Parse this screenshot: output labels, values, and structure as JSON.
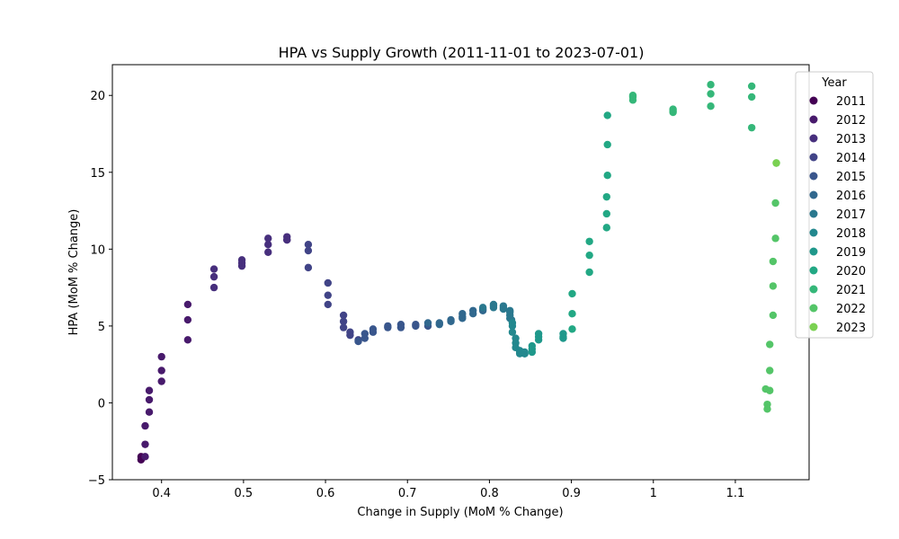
{
  "chart_data": {
    "type": "scatter",
    "title": "HPA vs Supply Growth (2011-11-01 to 2023-07-01)",
    "xlabel": "Change in Supply (MoM % Change)",
    "ylabel": "HPA (MoM % Change)",
    "xlim": [
      0.34,
      1.19
    ],
    "ylim": [
      -5,
      22
    ],
    "xticks": [
      0.4,
      0.5,
      0.6,
      0.7,
      0.8,
      0.9,
      1.0,
      1.1
    ],
    "yticks": [
      -5,
      0,
      5,
      10,
      15,
      20
    ],
    "grid": false,
    "legend": {
      "title": "Year",
      "placement": "right",
      "entries": [
        {
          "label": "2011",
          "color": "#440154"
        },
        {
          "label": "2012",
          "color": "#481a6c"
        },
        {
          "label": "2013",
          "color": "#472f7d"
        },
        {
          "label": "2014",
          "color": "#414487"
        },
        {
          "label": "2015",
          "color": "#39568c"
        },
        {
          "label": "2016",
          "color": "#31688e"
        },
        {
          "label": "2017",
          "color": "#2a788e"
        },
        {
          "label": "2018",
          "color": "#23888e"
        },
        {
          "label": "2019",
          "color": "#1f988b"
        },
        {
          "label": "2020",
          "color": "#22a884"
        },
        {
          "label": "2021",
          "color": "#35b779"
        },
        {
          "label": "2022",
          "color": "#54c568"
        },
        {
          "label": "2023",
          "color": "#7ad151"
        }
      ]
    },
    "series": [
      {
        "name": "2011",
        "color": "#440154",
        "points": [
          [
            0.375,
            -3.7
          ],
          [
            0.375,
            -3.5
          ]
        ]
      },
      {
        "name": "2012",
        "color": "#481a6c",
        "points": [
          [
            0.38,
            -3.5
          ],
          [
            0.38,
            -2.7
          ],
          [
            0.38,
            -1.5
          ],
          [
            0.385,
            -0.6
          ],
          [
            0.385,
            0.2
          ],
          [
            0.385,
            0.8
          ],
          [
            0.4,
            1.4
          ],
          [
            0.4,
            2.1
          ],
          [
            0.4,
            3.0
          ],
          [
            0.432,
            4.1
          ],
          [
            0.432,
            5.4
          ],
          [
            0.432,
            6.4
          ]
        ]
      },
      {
        "name": "2013",
        "color": "#472f7d",
        "points": [
          [
            0.464,
            7.5
          ],
          [
            0.464,
            8.2
          ],
          [
            0.464,
            8.7
          ],
          [
            0.498,
            8.9
          ],
          [
            0.498,
            9.1
          ],
          [
            0.498,
            9.3
          ],
          [
            0.53,
            9.8
          ],
          [
            0.53,
            10.3
          ],
          [
            0.53,
            10.7
          ],
          [
            0.553,
            10.6
          ],
          [
            0.553,
            10.8
          ],
          [
            0.553,
            10.6
          ]
        ]
      },
      {
        "name": "2014",
        "color": "#414487",
        "points": [
          [
            0.579,
            10.3
          ],
          [
            0.579,
            9.9
          ],
          [
            0.579,
            8.8
          ],
          [
            0.603,
            7.8
          ],
          [
            0.603,
            7.0
          ],
          [
            0.603,
            6.4
          ],
          [
            0.622,
            5.7
          ],
          [
            0.622,
            5.3
          ],
          [
            0.622,
            4.9
          ],
          [
            0.63,
            4.6
          ],
          [
            0.63,
            4.4
          ],
          [
            0.64,
            4.1
          ]
        ]
      },
      {
        "name": "2015",
        "color": "#39568c",
        "points": [
          [
            0.64,
            4.0
          ],
          [
            0.648,
            4.2
          ],
          [
            0.648,
            4.5
          ],
          [
            0.658,
            4.6
          ],
          [
            0.658,
            4.8
          ],
          [
            0.676,
            4.9
          ],
          [
            0.676,
            5.0
          ],
          [
            0.692,
            4.9
          ],
          [
            0.692,
            5.1
          ],
          [
            0.71,
            5.0
          ],
          [
            0.71,
            5.1
          ],
          [
            0.725,
            5.0
          ]
        ]
      },
      {
        "name": "2016",
        "color": "#31688e",
        "points": [
          [
            0.725,
            5.2
          ],
          [
            0.739,
            5.1
          ],
          [
            0.739,
            5.2
          ],
          [
            0.753,
            5.3
          ],
          [
            0.753,
            5.4
          ],
          [
            0.767,
            5.5
          ],
          [
            0.767,
            5.6
          ],
          [
            0.767,
            5.8
          ],
          [
            0.78,
            5.8
          ],
          [
            0.78,
            6.0
          ],
          [
            0.792,
            6.0
          ],
          [
            0.792,
            6.1
          ]
        ]
      },
      {
        "name": "2017",
        "color": "#2a788e",
        "points": [
          [
            0.792,
            6.2
          ],
          [
            0.805,
            6.3
          ],
          [
            0.805,
            6.2
          ],
          [
            0.805,
            6.4
          ],
          [
            0.817,
            6.3
          ],
          [
            0.817,
            6.2
          ],
          [
            0.817,
            6.1
          ],
          [
            0.825,
            6.0
          ],
          [
            0.825,
            5.9
          ],
          [
            0.825,
            5.7
          ],
          [
            0.825,
            5.5
          ],
          [
            0.827,
            5.4
          ]
        ]
      },
      {
        "name": "2018",
        "color": "#23888e",
        "points": [
          [
            0.828,
            5.2
          ],
          [
            0.828,
            5.0
          ],
          [
            0.828,
            4.6
          ],
          [
            0.832,
            4.2
          ],
          [
            0.832,
            3.9
          ],
          [
            0.832,
            3.6
          ],
          [
            0.837,
            3.4
          ],
          [
            0.837,
            3.3
          ],
          [
            0.837,
            3.2
          ],
          [
            0.843,
            3.2
          ],
          [
            0.843,
            3.3
          ],
          [
            0.843,
            3.2
          ]
        ]
      },
      {
        "name": "2019",
        "color": "#1f988b",
        "points": [
          [
            0.852,
            3.3
          ],
          [
            0.852,
            3.5
          ],
          [
            0.852,
            3.7
          ],
          [
            0.86,
            4.1
          ],
          [
            0.86,
            4.3
          ],
          [
            0.86,
            4.5
          ],
          [
            0.89,
            4.2
          ],
          [
            0.89,
            4.3
          ],
          [
            0.89,
            4.5
          ]
        ]
      },
      {
        "name": "2020",
        "color": "#22a884",
        "points": [
          [
            0.901,
            4.8
          ],
          [
            0.901,
            5.8
          ],
          [
            0.901,
            7.1
          ],
          [
            0.922,
            8.5
          ],
          [
            0.922,
            9.6
          ],
          [
            0.922,
            10.5
          ],
          [
            0.943,
            11.4
          ],
          [
            0.943,
            12.3
          ],
          [
            0.943,
            13.4
          ],
          [
            0.944,
            14.8
          ],
          [
            0.944,
            16.8
          ],
          [
            0.944,
            18.7
          ]
        ]
      },
      {
        "name": "2021",
        "color": "#35b779",
        "points": [
          [
            0.975,
            19.7
          ],
          [
            0.975,
            19.9
          ],
          [
            0.975,
            20.0
          ],
          [
            1.024,
            18.9
          ],
          [
            1.024,
            19.0
          ],
          [
            1.024,
            19.1
          ],
          [
            1.07,
            19.3
          ],
          [
            1.07,
            20.1
          ],
          [
            1.07,
            20.7
          ],
          [
            1.12,
            20.6
          ],
          [
            1.12,
            19.9
          ],
          [
            1.12,
            17.9
          ]
        ]
      },
      {
        "name": "2022",
        "color": "#54c568",
        "points": [
          [
            1.15,
            15.6
          ],
          [
            1.149,
            13.0
          ],
          [
            1.149,
            10.7
          ],
          [
            1.146,
            9.2
          ],
          [
            1.146,
            7.6
          ],
          [
            1.146,
            5.7
          ],
          [
            1.142,
            3.8
          ],
          [
            1.142,
            2.1
          ],
          [
            1.142,
            0.8
          ],
          [
            1.137,
            0.9
          ],
          [
            1.139,
            -0.1
          ],
          [
            1.139,
            -0.4
          ]
        ]
      },
      {
        "name": "2023",
        "color": "#7ad151",
        "points": [
          [
            1.15,
            15.6
          ]
        ]
      }
    ]
  }
}
